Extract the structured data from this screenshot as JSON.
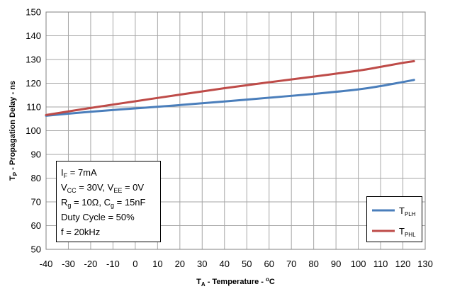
{
  "chart_data": {
    "type": "line",
    "xlabel_main": "T",
    "xlabel_sub": "A",
    "xlabel_rest": " - Temperature - ",
    "xlabel_unit_sup": "o",
    "xlabel_unit": "C",
    "ylabel_main": "T",
    "ylabel_sub": "P",
    "ylabel_rest": " - Propagation Delay - ns",
    "xlim": [
      -40,
      130
    ],
    "ylim": [
      50,
      150
    ],
    "xticks": [
      -40,
      -30,
      -20,
      -10,
      0,
      10,
      20,
      30,
      40,
      50,
      60,
      70,
      80,
      90,
      100,
      110,
      120,
      130
    ],
    "yticks": [
      50,
      60,
      70,
      80,
      90,
      100,
      110,
      120,
      130,
      140,
      150
    ],
    "grid": true,
    "legend_position": "bottom-right",
    "series": [
      {
        "name_main": "T",
        "name_sub": "PLH",
        "color": "#4a7ebb",
        "x": [
          -40,
          -20,
          0,
          20,
          40,
          60,
          80,
          100,
          110,
          120,
          125
        ],
        "y": [
          106.3,
          108.0,
          109.4,
          110.8,
          112.3,
          113.9,
          115.5,
          117.4,
          118.8,
          120.5,
          121.4
        ]
      },
      {
        "name_main": "T",
        "name_sub": "PHL",
        "color": "#be4b48",
        "x": [
          -40,
          -20,
          0,
          20,
          40,
          60,
          80,
          100,
          110,
          120,
          125
        ],
        "y": [
          106.6,
          109.6,
          112.4,
          115.2,
          117.9,
          120.4,
          122.8,
          125.3,
          126.9,
          128.6,
          129.3
        ]
      }
    ],
    "annotation_lines": [
      {
        "main": "I",
        "sub": "F",
        "rest": " = 7mA"
      },
      {
        "main": "V",
        "sub": "CC",
        "rest": " = 30V, V",
        "sub2": "EE",
        "rest2": " = 0V"
      },
      {
        "main": "R",
        "sub": "g",
        "rest": " = 10Ω, C",
        "sub2": "g",
        "rest2": " = 15nF"
      },
      {
        "main": "Duty Cycle = 50%"
      },
      {
        "main": "f = 20kHz"
      }
    ]
  }
}
